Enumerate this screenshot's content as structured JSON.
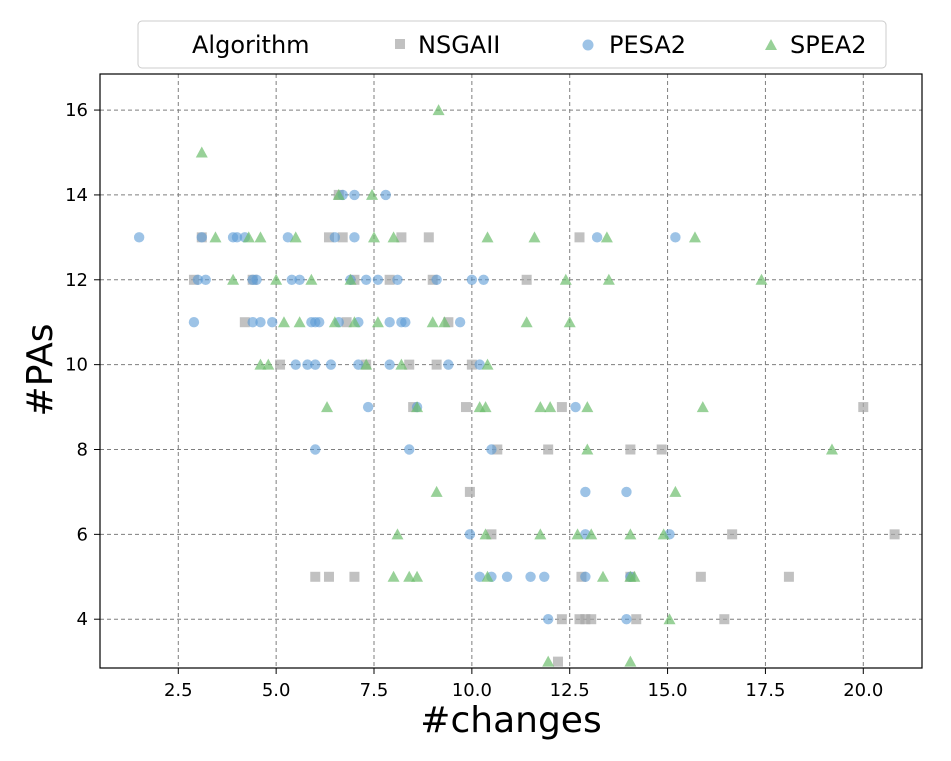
{
  "chart_data": {
    "type": "scatter",
    "xlabel": "#changes",
    "ylabel": "#PAs",
    "xlim": [
      0.5,
      21.5
    ],
    "ylim": [
      2.85,
      16.85
    ],
    "xticks": [
      2.5,
      5.0,
      7.5,
      10.0,
      12.5,
      15.0,
      17.5,
      20.0
    ],
    "xtick_labels": [
      "2.5",
      "5.0",
      "7.5",
      "10.0",
      "12.5",
      "15.0",
      "17.5",
      "20.0"
    ],
    "yticks": [
      4,
      6,
      8,
      10,
      12,
      14,
      16
    ],
    "ytick_labels": [
      "4",
      "6",
      "8",
      "10",
      "12",
      "14",
      "16"
    ],
    "grid": true,
    "legend": {
      "title": "Algorithm",
      "placement": "top-center"
    },
    "series": [
      {
        "name": "NSGAII",
        "marker": "square",
        "color": "#a6a6a6",
        "points": [
          [
            2.9,
            12
          ],
          [
            3.1,
            13
          ],
          [
            4.2,
            11
          ],
          [
            4.4,
            12
          ],
          [
            5.1,
            10
          ],
          [
            6.0,
            5
          ],
          [
            6.35,
            13
          ],
          [
            6.35,
            5
          ],
          [
            6.6,
            14
          ],
          [
            6.7,
            13
          ],
          [
            6.8,
            11
          ],
          [
            7.0,
            5
          ],
          [
            7.0,
            12
          ],
          [
            7.3,
            10
          ],
          [
            7.9,
            12
          ],
          [
            8.2,
            13
          ],
          [
            8.4,
            10
          ],
          [
            8.5,
            9
          ],
          [
            8.9,
            13
          ],
          [
            9.0,
            12
          ],
          [
            9.1,
            10
          ],
          [
            9.4,
            11
          ],
          [
            9.85,
            9
          ],
          [
            9.95,
            7
          ],
          [
            10.0,
            10
          ],
          [
            10.5,
            6
          ],
          [
            10.65,
            8
          ],
          [
            11.4,
            12
          ],
          [
            11.95,
            8
          ],
          [
            12.2,
            3
          ],
          [
            12.3,
            9
          ],
          [
            12.3,
            4
          ],
          [
            12.75,
            13
          ],
          [
            12.75,
            4
          ],
          [
            12.8,
            5
          ],
          [
            12.9,
            4
          ],
          [
            13.05,
            4
          ],
          [
            14.05,
            8
          ],
          [
            14.05,
            5
          ],
          [
            14.2,
            4
          ],
          [
            14.85,
            8
          ],
          [
            15.85,
            5
          ],
          [
            16.45,
            4
          ],
          [
            16.65,
            6
          ],
          [
            18.1,
            5
          ],
          [
            20.0,
            9
          ],
          [
            20.8,
            6
          ]
        ]
      },
      {
        "name": "PESA2",
        "marker": "circle",
        "color": "#5b9bd5",
        "points": [
          [
            1.5,
            13
          ],
          [
            2.9,
            11
          ],
          [
            3.0,
            12
          ],
          [
            3.1,
            13
          ],
          [
            3.2,
            12
          ],
          [
            3.9,
            13
          ],
          [
            4.0,
            13
          ],
          [
            4.2,
            13
          ],
          [
            4.4,
            12
          ],
          [
            4.4,
            11
          ],
          [
            4.5,
            12
          ],
          [
            4.6,
            11
          ],
          [
            4.9,
            11
          ],
          [
            5.3,
            13
          ],
          [
            5.4,
            12
          ],
          [
            5.5,
            10
          ],
          [
            5.6,
            12
          ],
          [
            5.8,
            10
          ],
          [
            5.9,
            11
          ],
          [
            6.0,
            10
          ],
          [
            6.0,
            8
          ],
          [
            6.0,
            11
          ],
          [
            6.1,
            11
          ],
          [
            6.4,
            10
          ],
          [
            6.5,
            13
          ],
          [
            6.6,
            11
          ],
          [
            6.7,
            14
          ],
          [
            6.9,
            12
          ],
          [
            7.0,
            14
          ],
          [
            7.0,
            13
          ],
          [
            7.1,
            11
          ],
          [
            7.1,
            10
          ],
          [
            7.3,
            12
          ],
          [
            7.35,
            9
          ],
          [
            7.6,
            12
          ],
          [
            7.8,
            14
          ],
          [
            7.9,
            11
          ],
          [
            7.9,
            10
          ],
          [
            8.1,
            12
          ],
          [
            8.2,
            11
          ],
          [
            8.3,
            11
          ],
          [
            8.4,
            8
          ],
          [
            8.6,
            9
          ],
          [
            9.1,
            12
          ],
          [
            9.4,
            10
          ],
          [
            9.7,
            11
          ],
          [
            10.0,
            12
          ],
          [
            10.2,
            10
          ],
          [
            10.3,
            12
          ],
          [
            10.2,
            5
          ],
          [
            10.5,
            8
          ],
          [
            9.95,
            6
          ],
          [
            10.5,
            5
          ],
          [
            10.9,
            5
          ],
          [
            11.5,
            5
          ],
          [
            11.85,
            5
          ],
          [
            11.95,
            4
          ],
          [
            12.65,
            9
          ],
          [
            12.9,
            7
          ],
          [
            12.9,
            5
          ],
          [
            12.9,
            6
          ],
          [
            13.2,
            13
          ],
          [
            13.95,
            7
          ],
          [
            13.95,
            4
          ],
          [
            14.05,
            5
          ],
          [
            15.05,
            6
          ],
          [
            15.2,
            13
          ]
        ]
      },
      {
        "name": "SPEA2",
        "marker": "triangle",
        "color": "#6cbd6c",
        "points": [
          [
            3.1,
            15
          ],
          [
            3.45,
            13
          ],
          [
            3.9,
            12
          ],
          [
            4.3,
            13
          ],
          [
            4.6,
            13
          ],
          [
            4.6,
            10
          ],
          [
            4.8,
            10
          ],
          [
            5.0,
            12
          ],
          [
            5.2,
            11
          ],
          [
            5.5,
            13
          ],
          [
            5.6,
            11
          ],
          [
            5.9,
            12
          ],
          [
            6.3,
            9
          ],
          [
            6.5,
            11
          ],
          [
            6.6,
            14
          ],
          [
            6.9,
            12
          ],
          [
            7.0,
            11
          ],
          [
            7.3,
            10
          ],
          [
            7.45,
            14
          ],
          [
            7.5,
            13
          ],
          [
            7.6,
            11
          ],
          [
            8.0,
            13
          ],
          [
            8.0,
            5
          ],
          [
            8.1,
            6
          ],
          [
            8.2,
            10
          ],
          [
            8.4,
            5
          ],
          [
            8.6,
            5
          ],
          [
            8.6,
            9
          ],
          [
            9.0,
            11
          ],
          [
            9.1,
            7
          ],
          [
            9.15,
            16
          ],
          [
            9.3,
            11
          ],
          [
            10.2,
            9
          ],
          [
            10.35,
            9
          ],
          [
            10.35,
            6
          ],
          [
            10.4,
            13
          ],
          [
            10.4,
            5
          ],
          [
            10.4,
            10
          ],
          [
            11.4,
            11
          ],
          [
            11.6,
            13
          ],
          [
            11.75,
            9
          ],
          [
            11.75,
            6
          ],
          [
            11.95,
            3
          ],
          [
            12.0,
            9
          ],
          [
            12.4,
            12
          ],
          [
            12.5,
            11
          ],
          [
            12.7,
            6
          ],
          [
            12.95,
            9
          ],
          [
            12.95,
            8
          ],
          [
            13.05,
            6
          ],
          [
            13.35,
            5
          ],
          [
            13.45,
            13
          ],
          [
            13.5,
            12
          ],
          [
            14.05,
            3
          ],
          [
            14.05,
            5
          ],
          [
            14.05,
            6
          ],
          [
            14.15,
            5
          ],
          [
            14.9,
            6
          ],
          [
            15.05,
            4
          ],
          [
            15.2,
            7
          ],
          [
            15.7,
            13
          ],
          [
            15.9,
            9
          ],
          [
            17.4,
            12
          ],
          [
            19.2,
            8
          ]
        ]
      }
    ]
  }
}
